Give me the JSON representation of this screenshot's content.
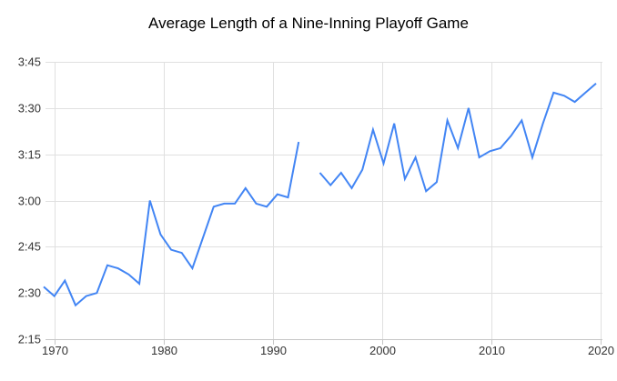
{
  "chart_data": {
    "type": "line",
    "title": "Average Length of a Nine-Inning Playoff Game",
    "xlabel": "",
    "ylabel": "",
    "legend": "none",
    "grid": true,
    "x_axis": {
      "ticks": [
        "1970",
        "1980",
        "1990",
        "2000",
        "2010",
        "2020"
      ],
      "range_years": [
        1969,
        2021
      ]
    },
    "y_axis": {
      "unit": "hours:minutes",
      "min": "2:15",
      "max": "3:45",
      "ticks": [
        "2:15",
        "2:30",
        "2:45",
        "3:00",
        "3:15",
        "3:30",
        "3:45"
      ]
    },
    "series": [
      {
        "name": "average-nine-inning-playoff-game-length",
        "color": "#4285f4",
        "points": [
          {
            "year": 1969,
            "time": "2:32"
          },
          {
            "year": 1970,
            "time": "2:29"
          },
          {
            "year": 1971,
            "time": "2:34"
          },
          {
            "year": 1972,
            "time": "2:26"
          },
          {
            "year": 1973,
            "time": "2:29"
          },
          {
            "year": 1974,
            "time": "2:30"
          },
          {
            "year": 1975,
            "time": "2:39"
          },
          {
            "year": 1976,
            "time": "2:38"
          },
          {
            "year": 1977,
            "time": "2:36"
          },
          {
            "year": 1978,
            "time": "2:33"
          },
          {
            "year": 1979,
            "time": "3:00"
          },
          {
            "year": 1980,
            "time": "2:49"
          },
          {
            "year": 1981,
            "time": "2:44"
          },
          {
            "year": 1982,
            "time": "2:43"
          },
          {
            "year": 1983,
            "time": "2:38"
          },
          {
            "year": 1984,
            "time": "2:48"
          },
          {
            "year": 1985,
            "time": "2:58"
          },
          {
            "year": 1986,
            "time": "2:59"
          },
          {
            "year": 1987,
            "time": "2:59"
          },
          {
            "year": 1988,
            "time": "3:04"
          },
          {
            "year": 1989,
            "time": "2:59"
          },
          {
            "year": 1990,
            "time": "2:58"
          },
          {
            "year": 1991,
            "time": "3:02"
          },
          {
            "year": 1992,
            "time": "3:01"
          },
          {
            "year": 1993,
            "time": "3:19"
          },
          {
            "year": 1994,
            "time": null
          },
          {
            "year": 1995,
            "time": "3:09"
          },
          {
            "year": 1996,
            "time": "3:05"
          },
          {
            "year": 1997,
            "time": "3:09"
          },
          {
            "year": 1998,
            "time": "3:04"
          },
          {
            "year": 1999,
            "time": "3:10"
          },
          {
            "year": 2000,
            "time": "3:23"
          },
          {
            "year": 2001,
            "time": "3:12"
          },
          {
            "year": 2002,
            "time": "3:25"
          },
          {
            "year": 2003,
            "time": "3:07"
          },
          {
            "year": 2004,
            "time": "3:14"
          },
          {
            "year": 2005,
            "time": "3:03"
          },
          {
            "year": 2006,
            "time": "3:06"
          },
          {
            "year": 2007,
            "time": "3:26"
          },
          {
            "year": 2008,
            "time": "3:17"
          },
          {
            "year": 2009,
            "time": "3:30"
          },
          {
            "year": 2010,
            "time": "3:14"
          },
          {
            "year": 2011,
            "time": "3:16"
          },
          {
            "year": 2012,
            "time": "3:17"
          },
          {
            "year": 2013,
            "time": "3:21"
          },
          {
            "year": 2014,
            "time": "3:26"
          },
          {
            "year": 2015,
            "time": "3:14"
          },
          {
            "year": 2016,
            "time": "3:25"
          },
          {
            "year": 2017,
            "time": "3:35"
          },
          {
            "year": 2018,
            "time": "3:34"
          },
          {
            "year": 2019,
            "time": "3:32"
          },
          {
            "year": 2020,
            "time": "3:35"
          },
          {
            "year": 2021,
            "time": "3:38"
          }
        ]
      }
    ]
  },
  "colors": {
    "line": "#4285f4",
    "gridline": "#e0e0e0",
    "axis": "#c6c6c6",
    "label": "#333333",
    "title": "#000000",
    "background": "#ffffff"
  }
}
